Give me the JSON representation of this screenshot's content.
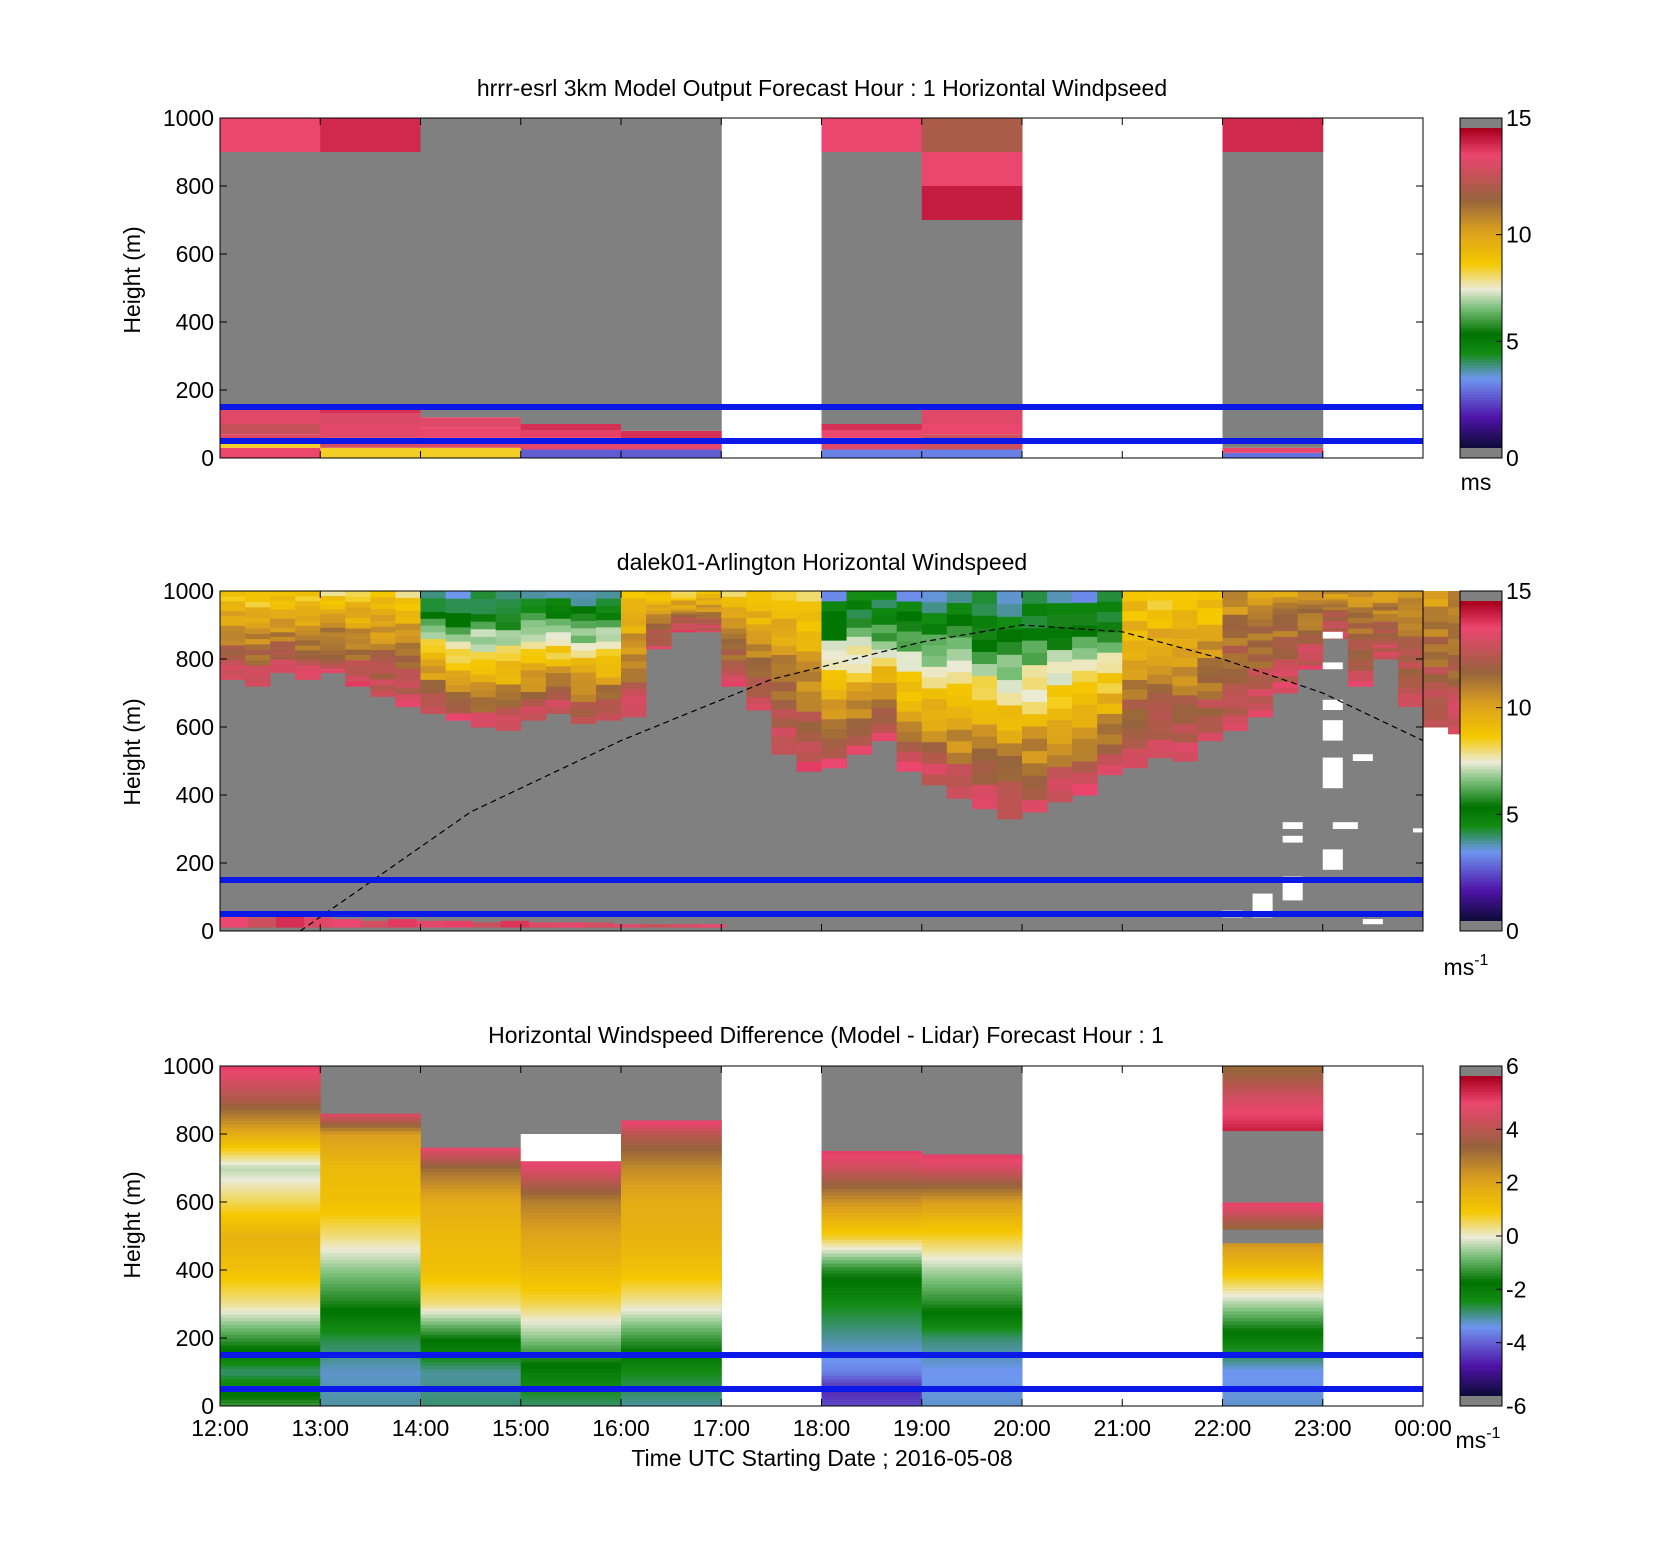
{
  "chart_data": [
    {
      "type": "heatmap",
      "title": "hrrr-esrl 3km Model Output   Forecast Hour : 1 Horizontal Windpseed",
      "xlabel": "",
      "ylabel": "Height (m)",
      "xlim": [
        "12:00",
        "00:00"
      ],
      "ylim": [
        0,
        1000
      ],
      "yticks": [
        "0",
        "200",
        "400",
        "600",
        "800",
        "1000"
      ],
      "colorbar": {
        "ticks": [
          "0",
          "5",
          "10",
          "15"
        ],
        "range": [
          0,
          15
        ],
        "unit": "ms",
        "unit_sup": ""
      },
      "reference_lines_m": [
        150,
        50
      ],
      "columns": [
        {
          "hour": "12:00",
          "segments": [
            [
              0,
              13.8
            ],
            [
              30,
              8.5
            ],
            [
              50,
              13.5
            ],
            [
              70,
              12.8
            ],
            [
              100,
              13.5
            ],
            [
              150,
              -1
            ],
            [
              900,
              13.8
            ]
          ]
        },
        {
          "hour": "13:00",
          "segments": [
            [
              0,
              8.5
            ],
            [
              30,
              13.2
            ],
            [
              60,
              13.6
            ],
            [
              100,
              13.4
            ],
            [
              130,
              14.2
            ],
            [
              150,
              -1
            ],
            [
              900,
              14.3
            ]
          ]
        },
        {
          "hour": "14:00",
          "segments": [
            [
              0,
              8.5
            ],
            [
              30,
              13.4
            ],
            [
              60,
              13.8
            ],
            [
              90,
              13.5
            ],
            [
              120,
              -1
            ]
          ]
        },
        {
          "hour": "15:00",
          "segments": [
            [
              0,
              2.5
            ],
            [
              25,
              13.6
            ],
            [
              60,
              13.9
            ],
            [
              80,
              14.2
            ],
            [
              100,
              -1
            ]
          ]
        },
        {
          "hour": "16:00",
          "segments": [
            [
              0,
              2.5
            ],
            [
              25,
              13.6
            ],
            [
              50,
              14.2
            ],
            [
              80,
              -1
            ]
          ]
        },
        {
          "hour": "17:00",
          "segments": []
        },
        {
          "hour": "18:00",
          "segments": [
            [
              0,
              3.0
            ],
            [
              25,
              13.5
            ],
            [
              60,
              13.8
            ],
            [
              80,
              14.2
            ],
            [
              100,
              -1
            ],
            [
              900,
              13.8
            ]
          ]
        },
        {
          "hour": "19:00",
          "segments": [
            [
              0,
              3.0
            ],
            [
              25,
              13.0
            ],
            [
              70,
              13.8
            ],
            [
              100,
              13.5
            ],
            [
              150,
              -1
            ],
            [
              700,
              14.5
            ],
            [
              800,
              13.8
            ],
            [
              900,
              12.2
            ]
          ]
        },
        {
          "hour": "20:00",
          "segments": []
        },
        {
          "hour": "21:00",
          "segments": []
        },
        {
          "hour": "22:00",
          "segments": [
            [
              0,
              2.8
            ],
            [
              15,
              13.8
            ],
            [
              30,
              -1
            ],
            [
              900,
              14.3
            ]
          ]
        },
        {
          "hour": "23:00",
          "segments": []
        }
      ]
    },
    {
      "type": "heatmap",
      "title": "dalek01-Arlington  Horizontal Windspeed",
      "xlabel": "",
      "ylabel": "Height (m)",
      "xlim": [
        "12:00",
        "00:00"
      ],
      "ylim": [
        0,
        1000
      ],
      "yticks": [
        "0",
        "200",
        "400",
        "600",
        "800",
        "1000"
      ],
      "colorbar": {
        "ticks": [
          "0",
          "5",
          "10",
          "15"
        ],
        "range": [
          0,
          15
        ],
        "unit": "ms",
        "unit_sup": "-1"
      },
      "reference_lines_m": [
        150,
        50
      ],
      "slot_width_h": 0.25,
      "boundary_m": [
        740,
        720,
        760,
        740,
        760,
        720,
        690,
        660,
        640,
        620,
        600,
        590,
        620,
        640,
        610,
        620,
        630,
        830,
        880,
        880,
        720,
        650,
        520,
        470,
        480,
        520,
        560,
        470,
        430,
        390,
        360,
        330,
        350,
        380,
        400,
        460,
        480,
        510,
        500,
        560,
        590,
        630,
        700,
        770,
        860,
        720,
        800,
        660,
        600,
        580
      ],
      "surface_slots": [
        {
          "h": 13.8,
          "top": 45
        },
        {
          "h": 13.0,
          "top": 40
        },
        {
          "h": 14.2,
          "top": 45
        },
        {
          "h": 13.5,
          "top": 40
        },
        {
          "h": 13.8,
          "top": 35
        },
        {
          "h": 13.2,
          "top": 30
        },
        {
          "h": 14.0,
          "top": 35
        },
        {
          "h": 13.6,
          "top": 30
        },
        {
          "h": 13.9,
          "top": 30
        },
        {
          "h": 13.0,
          "top": 25
        },
        {
          "h": 14.1,
          "top": 30
        },
        {
          "h": 13.5,
          "top": 25
        },
        {
          "h": 13.7,
          "top": 25
        },
        {
          "h": 13.2,
          "top": 25
        },
        {
          "h": 13.6,
          "top": 20
        },
        {
          "h": 13.0,
          "top": 20
        },
        {
          "h": 13.4,
          "top": 20
        },
        {
          "h": 13.8,
          "top": 20
        }
      ],
      "dashed_curve": [
        [
          12.8,
          0
        ],
        [
          14.5,
          350
        ],
        [
          16,
          560
        ],
        [
          17.5,
          740
        ],
        [
          19,
          850
        ],
        [
          20,
          900
        ],
        [
          21,
          880
        ],
        [
          22,
          800
        ],
        [
          23,
          700
        ],
        [
          24,
          560
        ]
      ],
      "note_outages": [
        {
          "x": 23.0,
          "y": 180,
          "h": 60,
          "w": 0.2
        },
        {
          "x": 22.3,
          "y": 40,
          "h": 70,
          "w": 0.2
        },
        {
          "x": 22.6,
          "y": 90,
          "h": 70,
          "w": 0.2
        },
        {
          "x": 23.0,
          "y": 420,
          "h": 90,
          "w": 0.2
        },
        {
          "x": 23.0,
          "y": 560,
          "h": 60,
          "w": 0.2
        },
        {
          "x": 23.0,
          "y": 650,
          "h": 30,
          "w": 0.2
        },
        {
          "x": 23.3,
          "y": 500,
          "h": 20,
          "w": 0.2
        },
        {
          "x": 23.0,
          "y": 770,
          "h": 20,
          "w": 0.2
        },
        {
          "x": 23.0,
          "y": 860,
          "h": 20,
          "w": 0.2
        },
        {
          "x": 22.6,
          "y": 260,
          "h": 20,
          "w": 0.2
        },
        {
          "x": 22.6,
          "y": 300,
          "h": 20,
          "w": 0.2
        },
        {
          "x": 23.1,
          "y": 300,
          "h": 20,
          "w": 0.25
        },
        {
          "x": 23.9,
          "y": 290,
          "h": 12,
          "w": 0.25
        },
        {
          "x": 22.0,
          "y": 40,
          "h": 20,
          "w": 0.2
        },
        {
          "x": 23.4,
          "y": 20,
          "h": 15,
          "w": 0.2
        }
      ]
    },
    {
      "type": "heatmap",
      "title": "Horizontal Windspeed Difference (Model - Lidar) Forecast Hour : 1",
      "xlabel": "Time UTC  Starting Date ; 2016-05-08",
      "ylabel": "Height (m)",
      "xlim": [
        "12:00",
        "00:00"
      ],
      "ylim": [
        0,
        1000
      ],
      "xticks": [
        "12:00",
        "13:00",
        "14:00",
        "15:00",
        "16:00",
        "17:00",
        "18:00",
        "19:00",
        "20:00",
        "21:00",
        "22:00",
        "23:00",
        "00:00"
      ],
      "yticks": [
        "0",
        "200",
        "400",
        "600",
        "800",
        "1000"
      ],
      "colorbar": {
        "ticks": [
          "-6",
          "-4",
          "-2",
          "0",
          "2",
          "4",
          "6"
        ],
        "range": [
          -6,
          6
        ],
        "unit": "ms",
        "unit_sup": "-1"
      },
      "reference_lines_m": [
        150,
        50
      ],
      "columns": [
        {
          "hour": "12:00",
          "top": 1000,
          "profile": [
            [
              0,
              -1.2
            ],
            [
              100,
              -2.8
            ],
            [
              200,
              -1.2
            ],
            [
              300,
              0.3
            ],
            [
              400,
              1.2
            ],
            [
              500,
              1.6
            ],
            [
              600,
              0.6
            ],
            [
              700,
              -0.3
            ],
            [
              800,
              1.8
            ],
            [
              900,
              3.8
            ],
            [
              1000,
              5.2
            ]
          ]
        },
        {
          "hour": "13:00",
          "top": 860,
          "profile": [
            [
              0,
              -3.0
            ],
            [
              100,
              -3.2
            ],
            [
              200,
              -2.6
            ],
            [
              300,
              -1.5
            ],
            [
              400,
              -0.6
            ],
            [
              500,
              0.4
            ],
            [
              600,
              1.2
            ],
            [
              700,
              1.4
            ],
            [
              800,
              2.2
            ],
            [
              860,
              4.8
            ]
          ]
        },
        {
          "hour": "14:00",
          "top": 760,
          "profile": [
            [
              0,
              -2.8
            ],
            [
              100,
              -3.0
            ],
            [
              200,
              -1.6
            ],
            [
              300,
              0.4
            ],
            [
              400,
              1.2
            ],
            [
              500,
              1.4
            ],
            [
              600,
              1.8
            ],
            [
              700,
              3.2
            ],
            [
              760,
              5.0
            ]
          ]
        },
        {
          "hour": "15:00",
          "top": 720,
          "profile": [
            [
              0,
              -2.8
            ],
            [
              100,
              -2.0
            ],
            [
              200,
              -0.6
            ],
            [
              300,
              0.6
            ],
            [
              400,
              1.4
            ],
            [
              500,
              2.0
            ],
            [
              600,
              2.8
            ],
            [
              700,
              4.8
            ],
            [
              720,
              5.0
            ]
          ]
        },
        {
          "hour": "16:00",
          "top": 840,
          "profile": [
            [
              0,
              -3.0
            ],
            [
              100,
              -2.4
            ],
            [
              200,
              -1.2
            ],
            [
              300,
              0.2
            ],
            [
              400,
              1.2
            ],
            [
              500,
              1.6
            ],
            [
              600,
              1.8
            ],
            [
              700,
              2.6
            ],
            [
              800,
              4.0
            ],
            [
              840,
              5.2
            ]
          ]
        },
        {
          "hour": "17:00",
          "top": 0,
          "profile": []
        },
        {
          "hour": "18:00",
          "top": 750,
          "profile": [
            [
              0,
              -4.2
            ],
            [
              50,
              -4.6
            ],
            [
              100,
              -3.6
            ],
            [
              200,
              -3.0
            ],
            [
              300,
              -2.4
            ],
            [
              400,
              -1.4
            ],
            [
              500,
              0.8
            ],
            [
              600,
              2.4
            ],
            [
              700,
              4.4
            ],
            [
              750,
              5.2
            ]
          ]
        },
        {
          "hour": "19:00",
          "top": 740,
          "profile": [
            [
              0,
              -3.2
            ],
            [
              100,
              -3.4
            ],
            [
              200,
              -2.8
            ],
            [
              300,
              -1.4
            ],
            [
              400,
              -0.4
            ],
            [
              500,
              0.8
            ],
            [
              600,
              2.2
            ],
            [
              700,
              4.6
            ],
            [
              740,
              5.2
            ]
          ]
        },
        {
          "hour": "20:00",
          "top": 0,
          "profile": []
        },
        {
          "hour": "21:00",
          "top": 0,
          "profile": []
        },
        {
          "hour": "22:00",
          "top": 1000,
          "profile": [
            [
              0,
              -3.2
            ],
            [
              100,
              -3.4
            ],
            [
              200,
              -2.0
            ],
            [
              300,
              -0.4
            ],
            [
              400,
              1.2
            ],
            [
              480,
              2.4
            ],
            [
              500,
              99
            ],
            [
              520,
              3.2
            ],
            [
              600,
              5.2
            ],
            [
              640,
              99
            ],
            [
              810,
              5.6
            ],
            [
              900,
              4.6
            ],
            [
              1000,
              3.2
            ]
          ]
        },
        {
          "hour": "23:00",
          "top": 0,
          "profile": []
        }
      ],
      "white_overlays": [
        {
          "x": 15.0,
          "y0": 720,
          "y1": 800,
          "w": 1.0
        }
      ]
    }
  ]
}
